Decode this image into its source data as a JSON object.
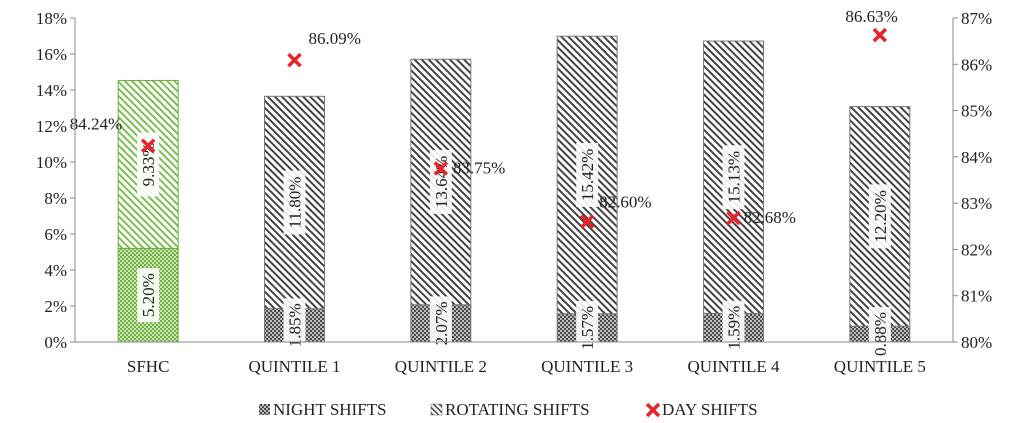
{
  "chart_data": {
    "type": "bar",
    "stacked": true,
    "categories": [
      "SFHC",
      "QUINTILE 1",
      "QUINTILE 2",
      "QUINTILE 3",
      "QUINTILE 4",
      "QUINTILE 5"
    ],
    "series": [
      {
        "name": "NIGHT SHIFTS",
        "kind": "bar",
        "axis": "left",
        "values": [
          5.2,
          1.85,
          2.07,
          1.57,
          1.59,
          0.88
        ],
        "labels": [
          "5.20%",
          "1.85%",
          "2.07%",
          "1.57%",
          "1.59%",
          "0.88%"
        ]
      },
      {
        "name": "ROTATING SHIFTS",
        "kind": "bar",
        "axis": "left",
        "values": [
          9.33,
          11.8,
          13.64,
          15.42,
          15.13,
          12.2
        ],
        "labels": [
          "9.33%",
          "11.80%",
          "13.64%",
          "15.42%",
          "15.13%",
          "12.20%"
        ]
      },
      {
        "name": "DAY SHIFTS",
        "kind": "marker",
        "axis": "right",
        "values": [
          84.24,
          86.09,
          83.75,
          82.6,
          82.68,
          86.63
        ],
        "labels": [
          "84.24%",
          "86.09%",
          "83.75%",
          "82.60%",
          "82.68%",
          "86.63%"
        ]
      }
    ],
    "y_left": {
      "min": 0,
      "max": 18,
      "ticks": [
        "0%",
        "2%",
        "4%",
        "6%",
        "8%",
        "10%",
        "12%",
        "14%",
        "16%",
        "18%"
      ]
    },
    "y_right": {
      "min": 80,
      "max": 87,
      "ticks": [
        "80%",
        "81%",
        "82%",
        "83%",
        "84%",
        "85%",
        "86%",
        "87%"
      ]
    },
    "legend_position": "bottom",
    "highlight_category": "SFHC",
    "colors": {
      "night_pattern": "#555555",
      "rotating_pattern": "#444444",
      "highlight": "#7cbf4e",
      "highlight_fill": "#c9e4b3",
      "marker": "#e8242a"
    }
  }
}
